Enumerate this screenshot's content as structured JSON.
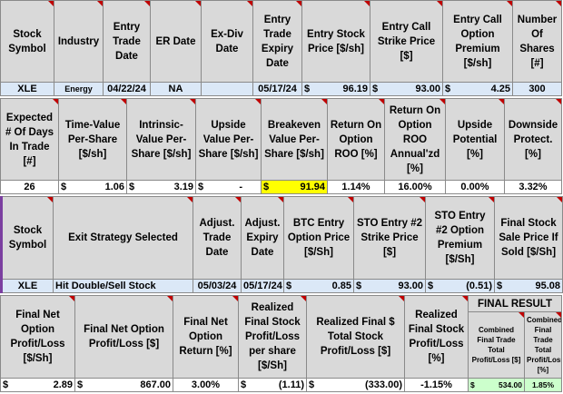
{
  "table1": {
    "headers": [
      "Stock Symbol",
      "Industry",
      "Entry Trade Date",
      "ER Date",
      "Ex-Div Date",
      "Entry Trade Expiry Date",
      "Entry Stock Price [$/sh]",
      "Entry Call Strike Price [$]",
      "Entry Call Option Premium [$/sh]",
      "Number Of Shares [#]"
    ],
    "values": {
      "symbol": "XLE",
      "industry": "Energy",
      "entry_date": "04/22/24",
      "er_date": "NA",
      "exdiv_date": "",
      "expiry_date": "05/17/24",
      "stock_price_sym": "$",
      "stock_price": "96.19",
      "strike_sym": "$",
      "strike": "93.00",
      "premium_sym": "$",
      "premium": "4.25",
      "shares": "300"
    }
  },
  "table2": {
    "headers": [
      "Expected # Of Days In Trade [#]",
      "Time-Value Per-Share [$/sh]",
      "Intrinsic-Value Per-Share [$/sh]",
      "Upside Value Per-Share [$/sh]",
      "Breakeven Value Per-Share [$/sh]",
      "Return On Option ROO [%]",
      "Return On Option ROO Annual'zd [%]",
      "Upside Potential [%]",
      "Downside Protect. [%]"
    ],
    "values": {
      "days": "26",
      "tv_sym": "$",
      "tv": "1.06",
      "iv_sym": "$",
      "iv": "3.19",
      "up_sym": "$",
      "up": "-",
      "be_sym": "$",
      "be": "91.94",
      "roo": "1.14%",
      "roo_ann": "16.00%",
      "upside_pct": "0.00%",
      "downside_pct": "3.32%"
    }
  },
  "table3": {
    "headers": [
      "Stock Symbol",
      "Exit Strategy Selected",
      "Adjust. Trade Date",
      "Adjust. Expiry Date",
      "BTC Entry Option Price [$/Sh]",
      "STO Entry #2 Strike Price [$]",
      "STO Entry #2 Option Premium [$/Sh]",
      "Final Stock Sale Price If Sold [$/Sh]"
    ],
    "values": {
      "symbol": "XLE",
      "strategy": "Hit Double/Sell Stock",
      "adj_date": "05/03/24",
      "adj_expiry": "05/17/24",
      "btc_sym": "$",
      "btc": "0.85",
      "sto_strike_sym": "$",
      "sto_strike": "93.00",
      "sto_prem_sym": "$",
      "sto_prem": "(0.51)",
      "final_sale_sym": "$",
      "final_sale": "95.08"
    }
  },
  "table4": {
    "headers": [
      "Final Net Option Profit/Loss [$/Sh]",
      "Final Net Option Profit/Loss [$]",
      "Final Net Option Return [%]",
      "Realized Final Stock Profit/Loss per share [$/Sh]",
      "Realized Final $ Total Stock Profit/Loss [$]",
      "Realized Final Stock Profit/Loss [%]"
    ],
    "final_result_title": "FINAL RESULT",
    "final_headers": [
      "Combined Final Trade Total Profit/Loss [$]",
      "Combined Final Trade Total Profit/Loss [%]"
    ],
    "values": {
      "net_opt_sh_sym": "$",
      "net_opt_sh": "2.89",
      "net_opt_sym": "$",
      "net_opt": "867.00",
      "net_opt_ret": "3.00%",
      "stock_pl_sh_sym": "$",
      "stock_pl_sh": "(1.11)",
      "stock_pl_sym": "$",
      "stock_pl": "(333.00)",
      "stock_pl_pct": "-1.15%",
      "combined_sym": "$",
      "combined": "534.00",
      "combined_pct": "1.85%"
    }
  },
  "colors": {
    "header_bg": "#d9d9d9",
    "value_blue": "#dbe8f7",
    "highlight_yellow": "#ffff00",
    "result_green": "#ccffcc",
    "flag_red": "#c00000"
  }
}
